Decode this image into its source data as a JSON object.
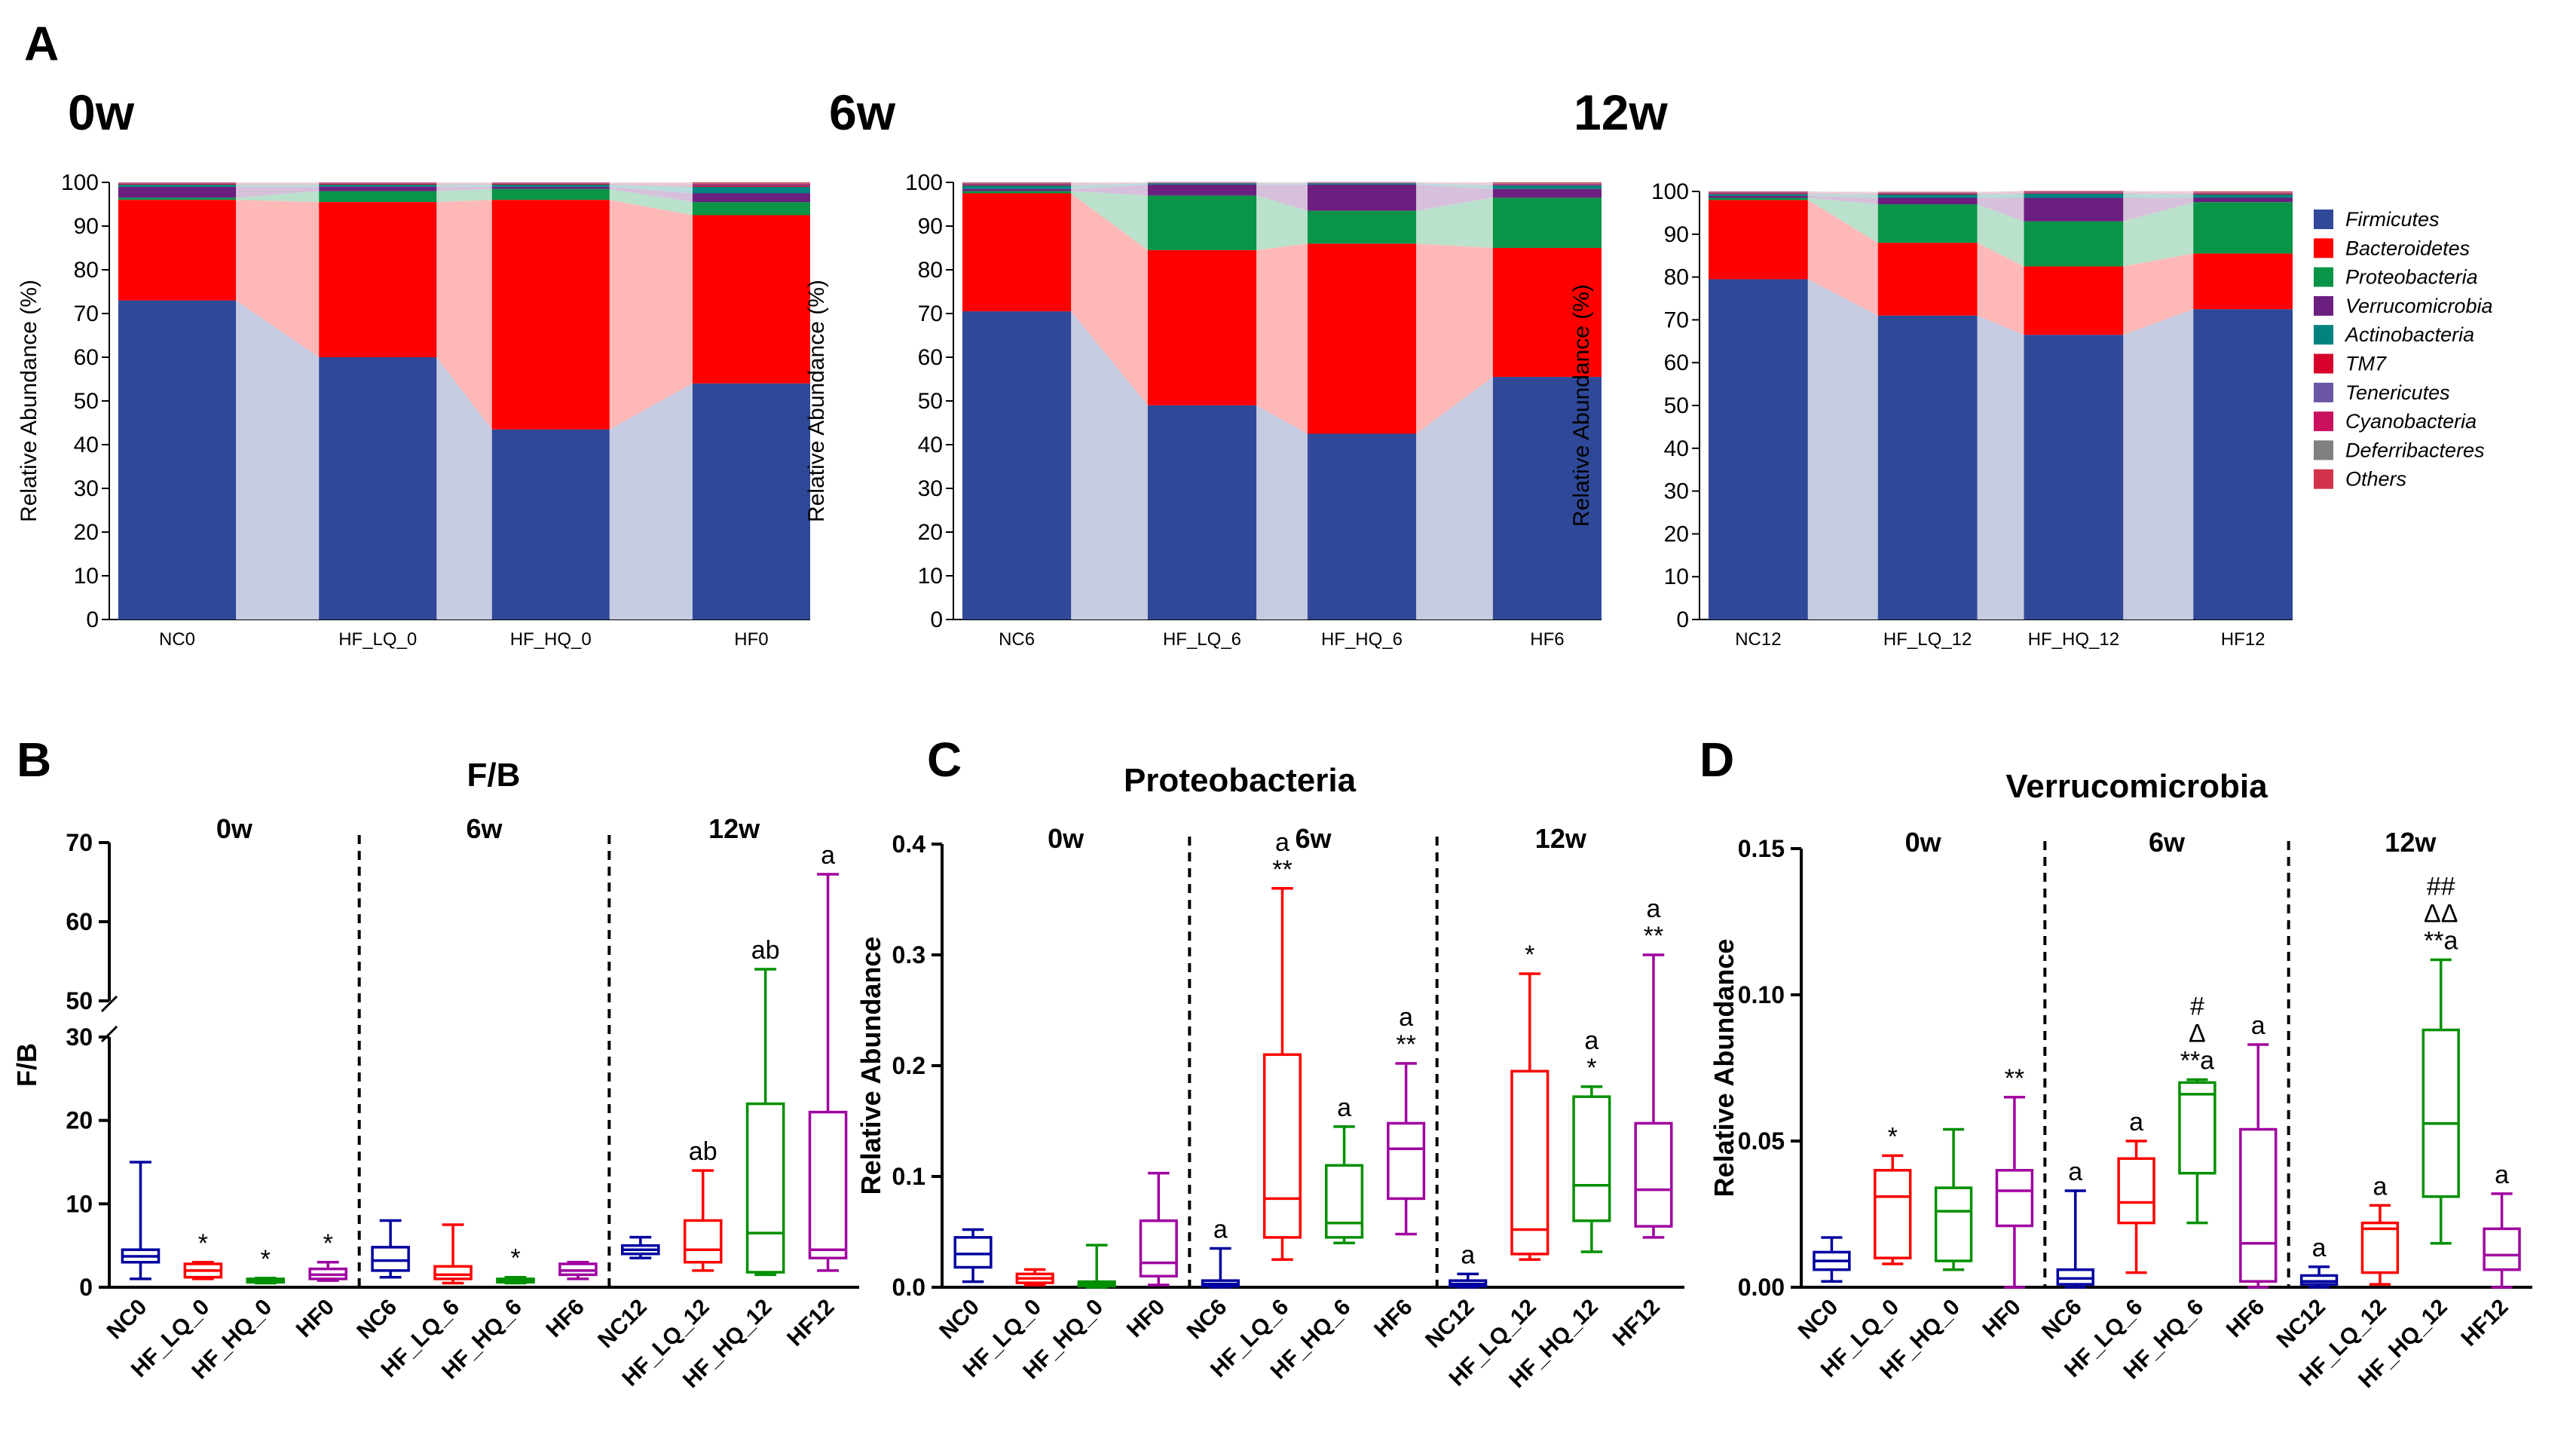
{
  "figure": {
    "panel_letters": [
      "A",
      "B",
      "C",
      "D"
    ]
  },
  "chart_data": [
    {
      "type": "bar",
      "stacked": true,
      "panel": "A",
      "title": "0w",
      "xlabel": "",
      "ylabel": "Relative Abundance (%)",
      "ylim": [
        0,
        100
      ],
      "yticks": [
        0,
        10,
        20,
        30,
        40,
        50,
        60,
        70,
        80,
        90,
        100
      ],
      "categories": [
        "NC0",
        "HF_LQ_0",
        "HF_HQ_0",
        "HF0"
      ],
      "series": [
        {
          "name": "Firmicutes",
          "values": [
            73,
            60,
            43.5,
            54
          ]
        },
        {
          "name": "Bacteroidetes",
          "values": [
            23,
            35.5,
            52.5,
            38.5
          ]
        },
        {
          "name": "Proteobacteria",
          "values": [
            0.5,
            2.5,
            2.5,
            3
          ]
        },
        {
          "name": "Verrucomicrobia",
          "values": [
            2.5,
            1,
            0.5,
            2
          ]
        },
        {
          "name": "Actinobacteria",
          "values": [
            0.5,
            0.5,
            0.5,
            1.5
          ]
        },
        {
          "name": "TM7",
          "values": [
            0.2,
            0.2,
            0.2,
            0.3
          ]
        },
        {
          "name": "Tenericutes",
          "values": [
            0.1,
            0.1,
            0.1,
            0.2
          ]
        },
        {
          "name": "Cyanobacteria",
          "values": [
            0.1,
            0.1,
            0.1,
            0.2
          ]
        },
        {
          "name": "Deferribacteres",
          "values": [
            0.05,
            0.05,
            0.05,
            0.1
          ]
        },
        {
          "name": "Others",
          "values": [
            0.05,
            0.05,
            0.05,
            0.2
          ]
        }
      ]
    },
    {
      "type": "bar",
      "stacked": true,
      "panel": "A",
      "title": "6w",
      "xlabel": "",
      "ylabel": "Relative Abundance (%)",
      "ylim": [
        0,
        100
      ],
      "yticks": [
        0,
        10,
        20,
        30,
        40,
        50,
        60,
        70,
        80,
        90,
        100
      ],
      "categories": [
        "NC6",
        "HF_LQ_6",
        "HF_HQ_6",
        "HF6"
      ],
      "series": [
        {
          "name": "Firmicutes",
          "values": [
            70.5,
            49,
            42.5,
            55.5
          ]
        },
        {
          "name": "Bacteroidetes",
          "values": [
            27,
            35.5,
            43.5,
            29.5
          ]
        },
        {
          "name": "Proteobacteria",
          "values": [
            0.5,
            12.5,
            7.5,
            11.5
          ]
        },
        {
          "name": "Verrucomicrobia",
          "values": [
            0.5,
            2.5,
            6,
            2
          ]
        },
        {
          "name": "Actinobacteria",
          "values": [
            0.8,
            0.3,
            0.3,
            0.8
          ]
        },
        {
          "name": "TM7",
          "values": [
            0.2,
            0.05,
            0.05,
            0.1
          ]
        },
        {
          "name": "Tenericutes",
          "values": [
            0.2,
            0.05,
            0.05,
            0.2
          ]
        },
        {
          "name": "Cyanobacteria",
          "values": [
            0.1,
            0.05,
            0.05,
            0.1
          ]
        },
        {
          "name": "Deferribacteres",
          "values": [
            0.1,
            0.05,
            0.05,
            0.1
          ]
        },
        {
          "name": "Others",
          "values": [
            0.1,
            0.05,
            0.05,
            0.2
          ]
        }
      ]
    },
    {
      "type": "bar",
      "stacked": true,
      "panel": "A",
      "title": "12w",
      "xlabel": "",
      "ylabel": "Relative Abundance (%)",
      "ylim": [
        0,
        100
      ],
      "yticks": [
        0,
        10,
        20,
        30,
        40,
        50,
        60,
        70,
        80,
        90,
        100
      ],
      "categories": [
        "NC12",
        "HF_LQ_12",
        "HF_HQ_12",
        "HF12"
      ],
      "series": [
        {
          "name": "Firmicutes",
          "values": [
            79.5,
            71,
            66.5,
            72.5
          ]
        },
        {
          "name": "Bacteroidetes",
          "values": [
            18.5,
            17,
            16,
            13
          ]
        },
        {
          "name": "Proteobacteria",
          "values": [
            0.5,
            9,
            10.5,
            12
          ]
        },
        {
          "name": "Verrucomicrobia",
          "values": [
            0.5,
            1.5,
            5.5,
            1
          ]
        },
        {
          "name": "Actinobacteria",
          "values": [
            0.4,
            0.8,
            1,
            0.8
          ]
        },
        {
          "name": "TM7",
          "values": [
            0.2,
            0.2,
            0.2,
            0.2
          ]
        },
        {
          "name": "Tenericutes",
          "values": [
            0.1,
            0.1,
            0.1,
            0.1
          ]
        },
        {
          "name": "Cyanobacteria",
          "values": [
            0.1,
            0.1,
            0.1,
            0.1
          ]
        },
        {
          "name": "Deferribacteres",
          "values": [
            0.1,
            0.1,
            0.1,
            0.1
          ]
        },
        {
          "name": "Others",
          "values": [
            0.1,
            0.1,
            0.1,
            0.2
          ]
        }
      ]
    },
    {
      "type": "box",
      "panel": "B",
      "title": "F/B",
      "ylabel": "F/B",
      "ylim": [
        0,
        70
      ],
      "axis_break": [
        30,
        50
      ],
      "yticks": [
        0,
        10,
        20,
        30,
        50,
        60,
        70
      ],
      "groups": [
        "0w",
        "6w",
        "12w"
      ],
      "categories": [
        "NC0",
        "HF_LQ_0",
        "HF_HQ_0",
        "HF0",
        "NC6",
        "HF_LQ_6",
        "HF_HQ_6",
        "HF6",
        "NC12",
        "HF_LQ_12",
        "HF_HQ_12",
        "HF12"
      ],
      "boxes": [
        {
          "min": 1,
          "q1": 3,
          "median": 3.7,
          "q3": 4.5,
          "max": 15
        },
        {
          "min": 1,
          "q1": 1.2,
          "median": 2,
          "q3": 2.8,
          "max": 3
        },
        {
          "min": 0.5,
          "q1": 0.6,
          "median": 0.8,
          "q3": 1,
          "max": 1.1
        },
        {
          "min": 0.8,
          "q1": 1,
          "median": 1.5,
          "q3": 2.2,
          "max": 3
        },
        {
          "min": 1.2,
          "q1": 2,
          "median": 3.2,
          "q3": 4.8,
          "max": 8
        },
        {
          "min": 0.5,
          "q1": 1,
          "median": 1.5,
          "q3": 2.5,
          "max": 7.5
        },
        {
          "min": 0.5,
          "q1": 0.6,
          "median": 0.8,
          "q3": 1,
          "max": 1.2
        },
        {
          "min": 1,
          "q1": 1.5,
          "median": 2,
          "q3": 2.8,
          "max": 3
        },
        {
          "min": 3.5,
          "q1": 4,
          "median": 4.5,
          "q3": 5,
          "max": 6
        },
        {
          "min": 2,
          "q1": 3,
          "median": 4.5,
          "q3": 8,
          "max": 14
        },
        {
          "min": 1.5,
          "q1": 1.8,
          "median": 6.5,
          "q3": 22,
          "max": 54
        },
        {
          "min": 2,
          "q1": 3.5,
          "median": 4.5,
          "q3": 21,
          "max": 66
        }
      ],
      "annotations": [
        "",
        "*",
        "*",
        "*",
        "",
        "",
        "*",
        "",
        "",
        "ab",
        "ab",
        "a"
      ]
    },
    {
      "type": "box",
      "panel": "C",
      "title": "Proteobacteria",
      "ylabel": "Relative Abundance",
      "ylim": [
        0,
        0.4
      ],
      "yticks": [
        "0.0",
        "0.1",
        "0.2",
        "0.3",
        "0.4"
      ],
      "groups": [
        "0w",
        "6w",
        "12w"
      ],
      "categories": [
        "NC0",
        "HF_LQ_0",
        "HF_HQ_0",
        "HF0",
        "NC6",
        "HF_LQ_6",
        "HF_HQ_6",
        "HF6",
        "NC12",
        "HF_LQ_12",
        "HF_HQ_12",
        "HF12"
      ],
      "boxes": [
        {
          "min": 0.005,
          "q1": 0.018,
          "median": 0.03,
          "q3": 0.045,
          "max": 0.052
        },
        {
          "min": 0.002,
          "q1": 0.004,
          "median": 0.008,
          "q3": 0.012,
          "max": 0.016
        },
        {
          "min": 0,
          "q1": 0.001,
          "median": 0.003,
          "q3": 0.005,
          "max": 0.038
        },
        {
          "min": 0.002,
          "q1": 0.01,
          "median": 0.022,
          "q3": 0.06,
          "max": 0.103
        },
        {
          "min": 0,
          "q1": 0.001,
          "median": 0.003,
          "q3": 0.006,
          "max": 0.035
        },
        {
          "min": 0.025,
          "q1": 0.045,
          "median": 0.08,
          "q3": 0.21,
          "max": 0.36
        },
        {
          "min": 0.04,
          "q1": 0.045,
          "median": 0.058,
          "q3": 0.11,
          "max": 0.145
        },
        {
          "min": 0.048,
          "q1": 0.08,
          "median": 0.125,
          "q3": 0.148,
          "max": 0.202
        },
        {
          "min": 0,
          "q1": 0.001,
          "median": 0.003,
          "q3": 0.006,
          "max": 0.012
        },
        {
          "min": 0.025,
          "q1": 0.03,
          "median": 0.052,
          "q3": 0.195,
          "max": 0.283
        },
        {
          "min": 0.032,
          "q1": 0.06,
          "median": 0.092,
          "q3": 0.172,
          "max": 0.181
        },
        {
          "min": 0.045,
          "q1": 0.055,
          "median": 0.088,
          "q3": 0.148,
          "max": 0.3
        }
      ],
      "annotations": [
        "",
        "",
        "",
        "",
        "a",
        "a\n**",
        "a",
        "a\n**",
        "a",
        "*",
        "a\n*",
        "a\n**"
      ]
    },
    {
      "type": "box",
      "panel": "D",
      "title": "Verrucomicrobia",
      "ylabel": "Relative Abundance",
      "ylim": [
        0,
        0.15
      ],
      "yticks": [
        "0.00",
        "0.05",
        "0.10",
        "0.15"
      ],
      "groups": [
        "0w",
        "6w",
        "12w"
      ],
      "categories": [
        "NC0",
        "HF_LQ_0",
        "HF_HQ_0",
        "HF0",
        "NC6",
        "HF_LQ_6",
        "HF_HQ_6",
        "HF6",
        "NC12",
        "HF_LQ_12",
        "HF_HQ_12",
        "HF12"
      ],
      "boxes": [
        {
          "min": 0.002,
          "q1": 0.006,
          "median": 0.009,
          "q3": 0.012,
          "max": 0.017
        },
        {
          "min": 0.008,
          "q1": 0.01,
          "median": 0.031,
          "q3": 0.04,
          "max": 0.045
        },
        {
          "min": 0.006,
          "q1": 0.009,
          "median": 0.026,
          "q3": 0.034,
          "max": 0.054
        },
        {
          "min": 0,
          "q1": 0.021,
          "median": 0.033,
          "q3": 0.04,
          "max": 0.065
        },
        {
          "min": 0,
          "q1": 0.001,
          "median": 0.003,
          "q3": 0.006,
          "max": 0.033
        },
        {
          "min": 0.005,
          "q1": 0.022,
          "median": 0.029,
          "q3": 0.044,
          "max": 0.05
        },
        {
          "min": 0.022,
          "q1": 0.039,
          "median": 0.066,
          "q3": 0.07,
          "max": 0.071
        },
        {
          "min": 0,
          "q1": 0.002,
          "median": 0.015,
          "q3": 0.054,
          "max": 0.083
        },
        {
          "min": 0,
          "q1": 0.001,
          "median": 0.002,
          "q3": 0.004,
          "max": 0.007
        },
        {
          "min": 0.001,
          "q1": 0.005,
          "median": 0.02,
          "q3": 0.022,
          "max": 0.028
        },
        {
          "min": 0.015,
          "q1": 0.031,
          "median": 0.056,
          "q3": 0.088,
          "max": 0.112
        },
        {
          "min": 0,
          "q1": 0.006,
          "median": 0.011,
          "q3": 0.02,
          "max": 0.032
        }
      ],
      "annotations": [
        "",
        "*",
        "",
        "**",
        "a",
        "a",
        "#\nΔ\n**a",
        "a",
        "a",
        "a",
        "##\nΔΔ\n**a",
        "a"
      ]
    }
  ],
  "colors": {
    "Firmicutes": "#2F4897",
    "Bacteroidetes": "#FF0000",
    "Proteobacteria": "#0A9447",
    "Verrucomicrobia": "#6B1F7F",
    "Actinobacteria": "#00827F",
    "TM7": "#D6002A",
    "Tenericutes": "#6B55A5",
    "Cyanobacteria": "#C8105F",
    "Deferribacteres": "#808080",
    "Others": "#D2334A",
    "box_colors": [
      "#0000A0",
      "#FF0000",
      "#009000",
      "#A000A0"
    ]
  }
}
